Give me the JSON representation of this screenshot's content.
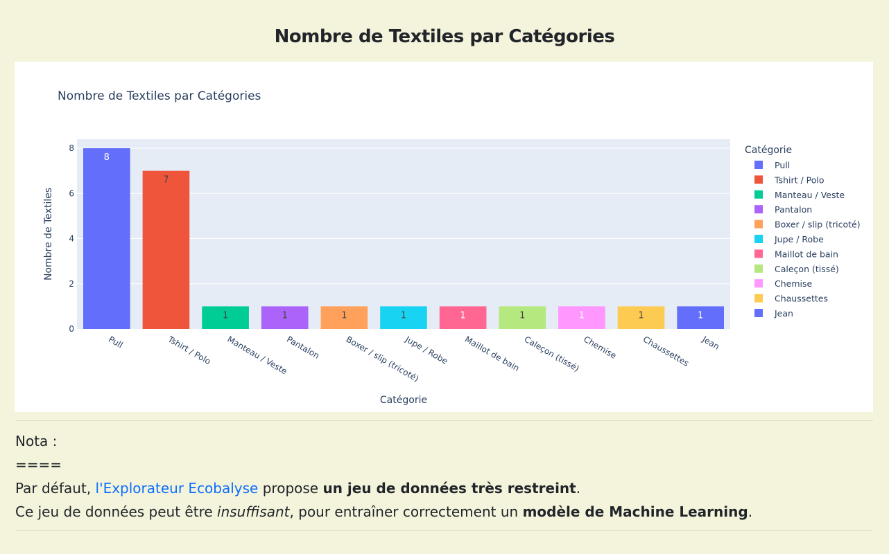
{
  "page": {
    "title": "Nombre de Textiles par Catégories"
  },
  "chart_data": {
    "type": "bar",
    "title": "Nombre de Textiles par Catégories",
    "xlabel": "Catégorie",
    "ylabel": "Nombre de Textiles",
    "ylim": [
      0,
      8.4
    ],
    "yticks": [
      0,
      2,
      4,
      6,
      8
    ],
    "grid": true,
    "legend_title": "Catégorie",
    "legend_position": "right",
    "categories": [
      "Pull",
      "Tshirt / Polo",
      "Manteau / Veste",
      "Pantalon",
      "Boxer / slip (tricoté)",
      "Jupe / Robe",
      "Maillot de bain",
      "Caleçon (tissé)",
      "Chemise",
      "Chaussettes",
      "Jean"
    ],
    "values": [
      8,
      7,
      1,
      1,
      1,
      1,
      1,
      1,
      1,
      1,
      1
    ],
    "colors": [
      "#636efa",
      "#ef553b",
      "#00cc96",
      "#ab63fa",
      "#ffa15a",
      "#19d3f3",
      "#ff6692",
      "#b6e880",
      "#ff97ff",
      "#fecb52",
      "#636efa"
    ],
    "label_colors": [
      "#ffffff",
      "#444444",
      "#444444",
      "#444444",
      "#444444",
      "#444444",
      "#ffffff",
      "#444444",
      "#ffffff",
      "#444444",
      "#ffffff"
    ],
    "plot_bg": "#e5ecf6"
  },
  "notes": {
    "heading": "Nota :",
    "rule": "====",
    "line1_prefix": "Par défaut, ",
    "line1_link": "l'Explorateur Ecobalyse",
    "line1_middle": " propose ",
    "line1_bold": "un jeu de données très restreint",
    "line1_suffix": ".",
    "line2_prefix": "Ce jeu de données peut être ",
    "line2_italic": "insuffisant",
    "line2_middle": ", pour entraîner correctement un ",
    "line2_bold": "modèle de Machine Learning",
    "line2_suffix": "."
  }
}
